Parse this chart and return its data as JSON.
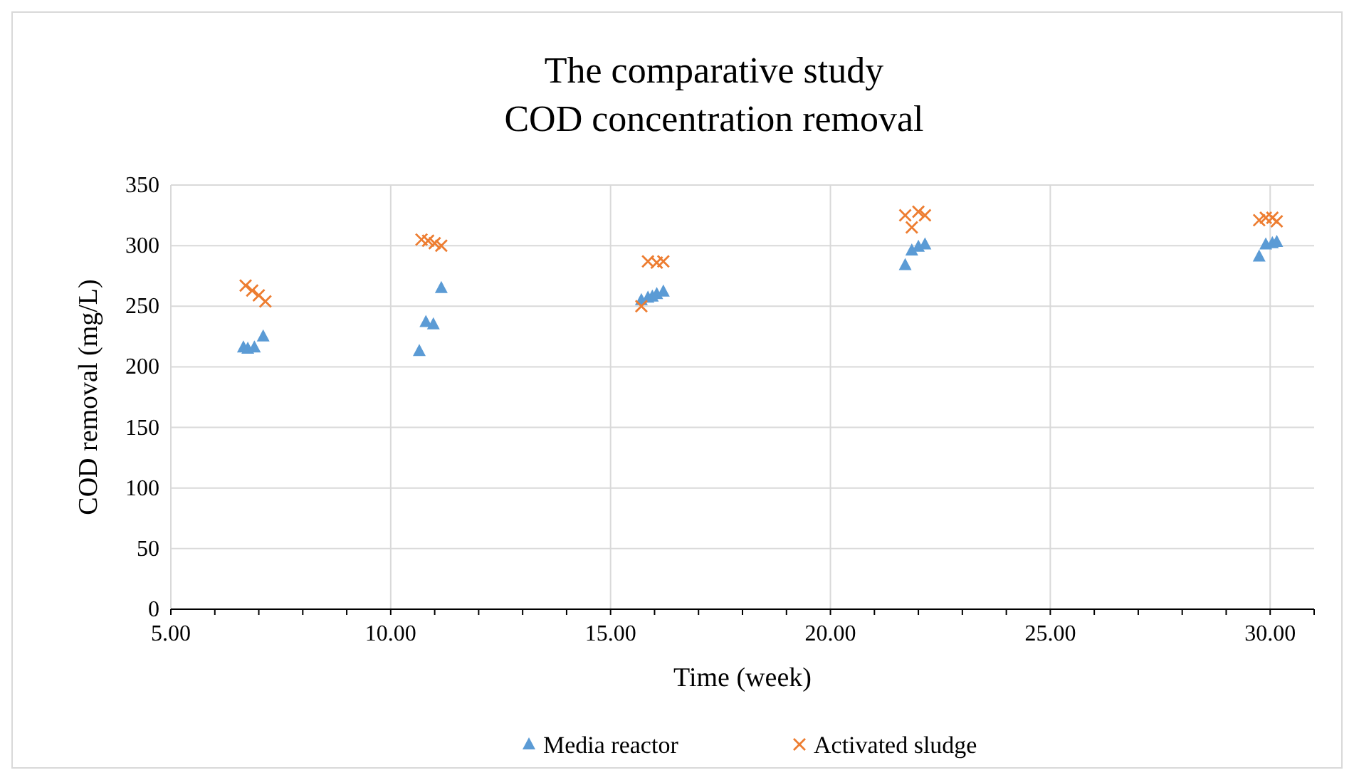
{
  "chart_data": {
    "type": "scatter",
    "title": "The comparative study\nCOD concentration removal",
    "xlabel": "Time (week)",
    "ylabel": "COD removal (mg/L)",
    "xlim": [
      5,
      31
    ],
    "xticks": [
      {
        "value": 5,
        "label": "5.00"
      },
      {
        "value": 10,
        "label": "10.00"
      },
      {
        "value": 15,
        "label": "15.00"
      },
      {
        "value": 20,
        "label": "20.00"
      },
      {
        "value": 25,
        "label": "25.00"
      },
      {
        "value": 30,
        "label": "30.00"
      }
    ],
    "ylim": [
      0,
      350
    ],
    "yticks": [
      0,
      50,
      100,
      150,
      200,
      250,
      300,
      350
    ],
    "grid": true,
    "legend": "bottom",
    "series": [
      {
        "name": "Media reactor",
        "color": "#5b9bd5",
        "marker": "triangle",
        "x": [
          6.65,
          6.75,
          6.9,
          7.1,
          10.65,
          10.8,
          10.97,
          11.15,
          15.7,
          15.85,
          15.95,
          16.05,
          16.2,
          21.7,
          21.85,
          22.0,
          22.15,
          29.75,
          29.9,
          30.05,
          30.15
        ],
        "values": [
          216,
          215,
          216,
          225,
          213,
          237,
          235,
          265,
          255,
          257,
          258,
          260,
          262,
          284,
          296,
          299,
          301,
          291,
          301,
          302,
          303
        ]
      },
      {
        "name": "Activated sludge",
        "color": "#ed7d31",
        "marker": "cross",
        "x": [
          6.7,
          6.85,
          7.0,
          7.15,
          10.7,
          10.85,
          11.0,
          11.15,
          15.7,
          15.85,
          16.05,
          16.2,
          21.7,
          21.85,
          22.0,
          22.15,
          29.75,
          29.9,
          30.05,
          30.15
        ],
        "values": [
          267,
          263,
          259,
          254,
          305,
          304,
          302,
          300,
          250,
          287,
          286,
          287,
          325,
          315,
          328,
          325,
          321,
          323,
          323,
          320
        ]
      }
    ]
  }
}
